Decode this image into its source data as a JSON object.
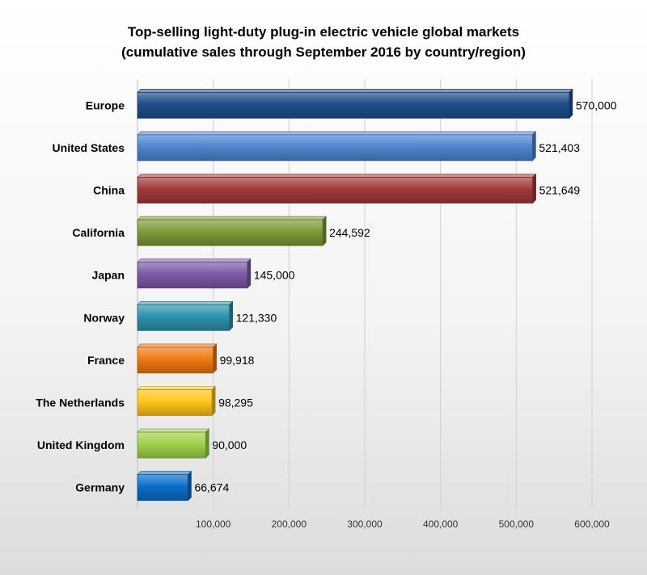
{
  "chart_data": {
    "type": "bar",
    "orientation": "horizontal",
    "title": "Top-selling light-duty plug-in electric vehicle global markets",
    "subtitle": "(cumulative sales through September 2016 by country/region)",
    "categories": [
      "Europe",
      "United States",
      "China",
      "California",
      "Japan",
      "Norway",
      "France",
      "The Netherlands",
      "United Kingdom",
      "Germany"
    ],
    "values": [
      570000,
      521403,
      521649,
      244592,
      145000,
      121330,
      99918,
      98295,
      90000,
      66674
    ],
    "value_labels": [
      "570,000",
      "521,403",
      "521,649",
      "244,592",
      "145,000",
      "121,330",
      "99,918",
      "98,295",
      "90,000",
      "66,674"
    ],
    "colors": [
      "#1f4e8c",
      "#4f86cf",
      "#a23a3a",
      "#7f9a3a",
      "#7d5aa6",
      "#2e93ad",
      "#f07a12",
      "#ffc61a",
      "#9fd44a",
      "#0a6fc9"
    ],
    "xticks": [
      100000,
      200000,
      300000,
      400000,
      500000,
      600000
    ],
    "xtick_labels": [
      "100,000",
      "200,000",
      "300,000",
      "400,000",
      "500,000",
      "600,000"
    ],
    "xlim": [
      0,
      600000
    ],
    "xlabel": "",
    "ylabel": "",
    "grid": true,
    "legend": "none"
  }
}
